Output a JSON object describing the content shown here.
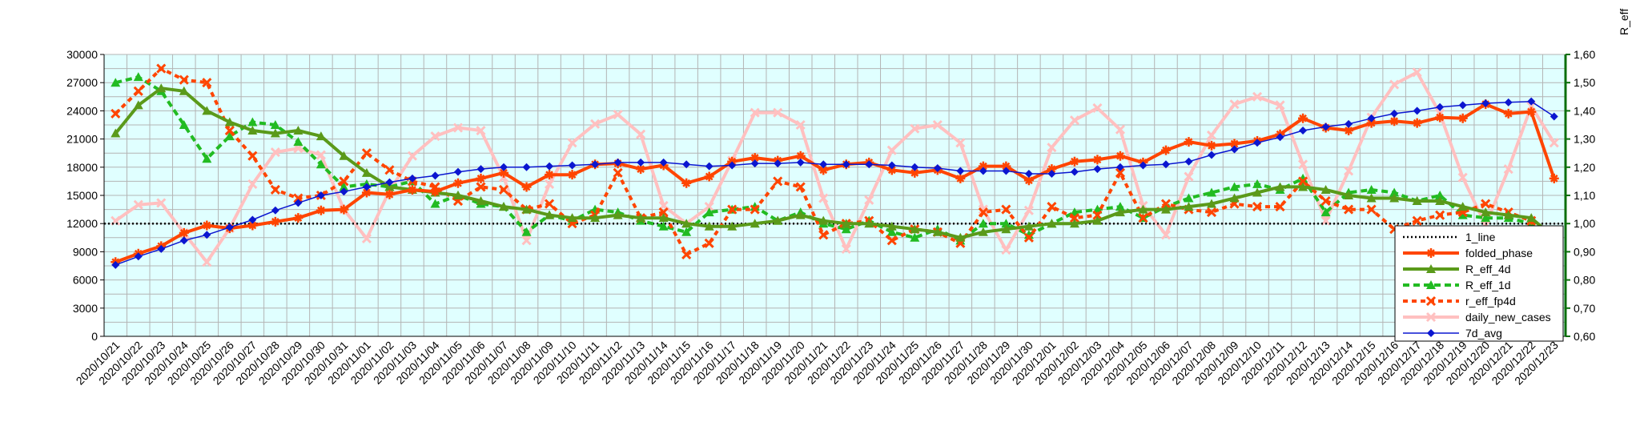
{
  "chart_data": {
    "type": "line",
    "y2label": "R_eff",
    "x": [
      "2020/10/21",
      "2020/10/22",
      "2020/10/23",
      "2020/10/24",
      "2020/10/25",
      "2020/10/26",
      "2020/10/27",
      "2020/10/28",
      "2020/10/29",
      "2020/10/30",
      "2020/10/31",
      "2020/11/01",
      "2020/11/02",
      "2020/11/03",
      "2020/11/04",
      "2020/11/05",
      "2020/11/06",
      "2020/11/07",
      "2020/11/08",
      "2020/11/09",
      "2020/11/10",
      "2020/11/11",
      "2020/11/12",
      "2020/11/13",
      "2020/11/14",
      "2020/11/15",
      "2020/11/16",
      "2020/11/17",
      "2020/11/18",
      "2020/11/19",
      "2020/11/20",
      "2020/11/21",
      "2020/11/22",
      "2020/11/23",
      "2020/11/24",
      "2020/11/25",
      "2020/11/26",
      "2020/11/27",
      "2020/11/28",
      "2020/11/29",
      "2020/11/30",
      "2020/12/01",
      "2020/12/02",
      "2020/12/03",
      "2020/12/04",
      "2020/12/05",
      "2020/12/06",
      "2020/12/07",
      "2020/12/08",
      "2020/12/09",
      "2020/12/10",
      "2020/12/11",
      "2020/12/12",
      "2020/12/13",
      "2020/12/14",
      "2020/12/15",
      "2020/12/16",
      "2020/12/17",
      "2020/12/18",
      "2020/12/19",
      "2020/12/20",
      "2020/12/21",
      "2020/12/22",
      "2020/12/23"
    ],
    "y_left_ticks": [
      "0",
      "3000",
      "6000",
      "9000",
      "12000",
      "15000",
      "18000",
      "21000",
      "24000",
      "27000",
      "30000"
    ],
    "y_right_ticks": [
      "0,60",
      "0,70",
      "0,80",
      "0,90",
      "1,00",
      "1,10",
      "1,20",
      "1,30",
      "1,40",
      "1,50",
      "1,60"
    ],
    "ylim": [
      0,
      30000
    ],
    "y2lim": [
      0.6,
      1.6
    ],
    "grid": true,
    "legend_position": "bottom-right",
    "series": [
      {
        "name": "1_line",
        "axis": "right",
        "color": "#000000",
        "style": "dotted",
        "values": [
          1,
          1,
          1,
          1,
          1,
          1,
          1,
          1,
          1,
          1,
          1,
          1,
          1,
          1,
          1,
          1,
          1,
          1,
          1,
          1,
          1,
          1,
          1,
          1,
          1,
          1,
          1,
          1,
          1,
          1,
          1,
          1,
          1,
          1,
          1,
          1,
          1,
          1,
          1,
          1,
          1,
          1,
          1,
          1,
          1,
          1,
          1,
          1,
          1,
          1,
          1,
          1,
          1,
          1,
          1,
          1,
          1,
          1,
          1,
          1,
          1,
          1,
          1,
          1
        ]
      },
      {
        "name": "folded_phase",
        "axis": "left",
        "color": "#ff4500",
        "style": "solid-thick",
        "marker": "star",
        "values": [
          7900,
          8800,
          9600,
          11000,
          11800,
          11500,
          11800,
          12200,
          12600,
          13400,
          13500,
          15300,
          15100,
          15600,
          15400,
          16300,
          16800,
          17400,
          15900,
          17200,
          17200,
          18300,
          18400,
          17800,
          18200,
          16300,
          17000,
          18600,
          19000,
          18700,
          19200,
          17700,
          18300,
          18500,
          17700,
          17400,
          17700,
          16800,
          18100,
          18100,
          16600,
          17800,
          18600,
          18800,
          19200,
          18500,
          19800,
          20700,
          20300,
          20500,
          20800,
          21500,
          23200,
          22200,
          21900,
          22700,
          22900,
          22700,
          23300,
          23200,
          24700,
          23700,
          23900,
          16800
        ]
      },
      {
        "name": "R_eff_4d",
        "axis": "right",
        "color": "#5a9a1a",
        "style": "solid-thick",
        "marker": "triangle",
        "values": [
          1.32,
          1.42,
          1.48,
          1.47,
          1.4,
          1.36,
          1.33,
          1.32,
          1.33,
          1.31,
          1.24,
          1.18,
          1.13,
          1.12,
          1.11,
          1.1,
          1.08,
          1.06,
          1.05,
          1.03,
          1.02,
          1.02,
          1.03,
          1.02,
          1.02,
          1.0,
          0.99,
          0.99,
          1.0,
          1.01,
          1.03,
          1.01,
          1.0,
          1.0,
          0.99,
          0.98,
          0.97,
          0.95,
          0.97,
          0.98,
          0.99,
          1.0,
          1.0,
          1.01,
          1.04,
          1.05,
          1.05,
          1.06,
          1.07,
          1.09,
          1.11,
          1.13,
          1.13,
          1.12,
          1.1,
          1.09,
          1.09,
          1.08,
          1.08,
          1.06,
          1.04,
          1.03,
          1.02,
          0.95
        ]
      },
      {
        "name": "R_eff_1d",
        "axis": "right",
        "color": "#22bb22",
        "style": "dashed",
        "marker": "triangle",
        "values": [
          1.5,
          1.52,
          1.47,
          1.35,
          1.23,
          1.31,
          1.36,
          1.35,
          1.29,
          1.21,
          1.13,
          1.14,
          1.13,
          1.15,
          1.07,
          1.1,
          1.07,
          1.06,
          0.97,
          1.03,
          1.01,
          1.05,
          1.04,
          1.01,
          0.99,
          0.97,
          1.04,
          1.05,
          1.06,
          1.01,
          1.04,
          1.0,
          0.98,
          1.01,
          0.97,
          0.95,
          0.98,
          0.94,
          1.0,
          1.0,
          0.96,
          1.0,
          1.04,
          1.05,
          1.06,
          1.02,
          1.06,
          1.09,
          1.11,
          1.13,
          1.14,
          1.12,
          1.16,
          1.04,
          1.11,
          1.12,
          1.11,
          1.08,
          1.1,
          1.03,
          1.02,
          1.02,
          1.0,
          0.77
        ]
      },
      {
        "name": "r_eff_fp4d",
        "axis": "right",
        "color": "#ff4500",
        "style": "dashed-thick",
        "marker": "x",
        "values": [
          1.39,
          1.47,
          1.55,
          1.51,
          1.5,
          1.33,
          1.24,
          1.12,
          1.09,
          1.1,
          1.15,
          1.25,
          1.19,
          1.15,
          1.13,
          1.08,
          1.13,
          1.12,
          1.05,
          1.07,
          1.0,
          1.03,
          1.18,
          1.02,
          1.04,
          0.89,
          0.93,
          1.05,
          1.05,
          1.15,
          1.13,
          0.96,
          1.0,
          1.01,
          0.94,
          0.98,
          0.97,
          0.93,
          1.04,
          1.05,
          0.95,
          1.06,
          1.02,
          1.03,
          1.18,
          1.02,
          1.07,
          1.05,
          1.04,
          1.07,
          1.06,
          1.06,
          1.15,
          1.08,
          1.05,
          1.05,
          0.98,
          1.01,
          1.03,
          1.04,
          1.07,
          1.04,
          1.01,
          0.74
        ]
      },
      {
        "name": "daily_new_cases",
        "axis": "left",
        "color": "#ffc0c0",
        "style": "solid-thick",
        "marker": "x",
        "values": [
          12300,
          14000,
          14200,
          11000,
          7900,
          11500,
          16200,
          19600,
          20000,
          19300,
          13500,
          10400,
          15500,
          19200,
          21300,
          22200,
          21900,
          16900,
          10200,
          16200,
          20600,
          22600,
          23600,
          21500,
          13900,
          12000,
          13800,
          18700,
          23800,
          23800,
          22500,
          14700,
          9300,
          14500,
          19800,
          22100,
          22500,
          20600,
          13500,
          9200,
          13400,
          20100,
          23000,
          24300,
          22000,
          13900,
          10800,
          17000,
          21400,
          24700,
          25500,
          24600,
          18300,
          12300,
          17600,
          23300,
          26800,
          28100,
          23700,
          16900,
          11800,
          17800,
          24500,
          20600
        ]
      },
      {
        "name": "7d_avg",
        "axis": "left",
        "color": "#0b16d0",
        "style": "solid-thin",
        "marker": "diamond",
        "values": [
          7600,
          8500,
          9300,
          10200,
          10800,
          11600,
          12400,
          13400,
          14200,
          15000,
          15400,
          15900,
          16400,
          16800,
          17100,
          17500,
          17800,
          18000,
          18000,
          18100,
          18200,
          18300,
          18500,
          18500,
          18500,
          18300,
          18100,
          18200,
          18400,
          18400,
          18500,
          18300,
          18300,
          18300,
          18200,
          18000,
          17900,
          17600,
          17600,
          17600,
          17300,
          17300,
          17500,
          17800,
          18000,
          18200,
          18300,
          18600,
          19300,
          19900,
          20600,
          21200,
          21900,
          22300,
          22600,
          23200,
          23700,
          24000,
          24400,
          24600,
          24800,
          24900,
          25000,
          23400
        ]
      }
    ]
  }
}
